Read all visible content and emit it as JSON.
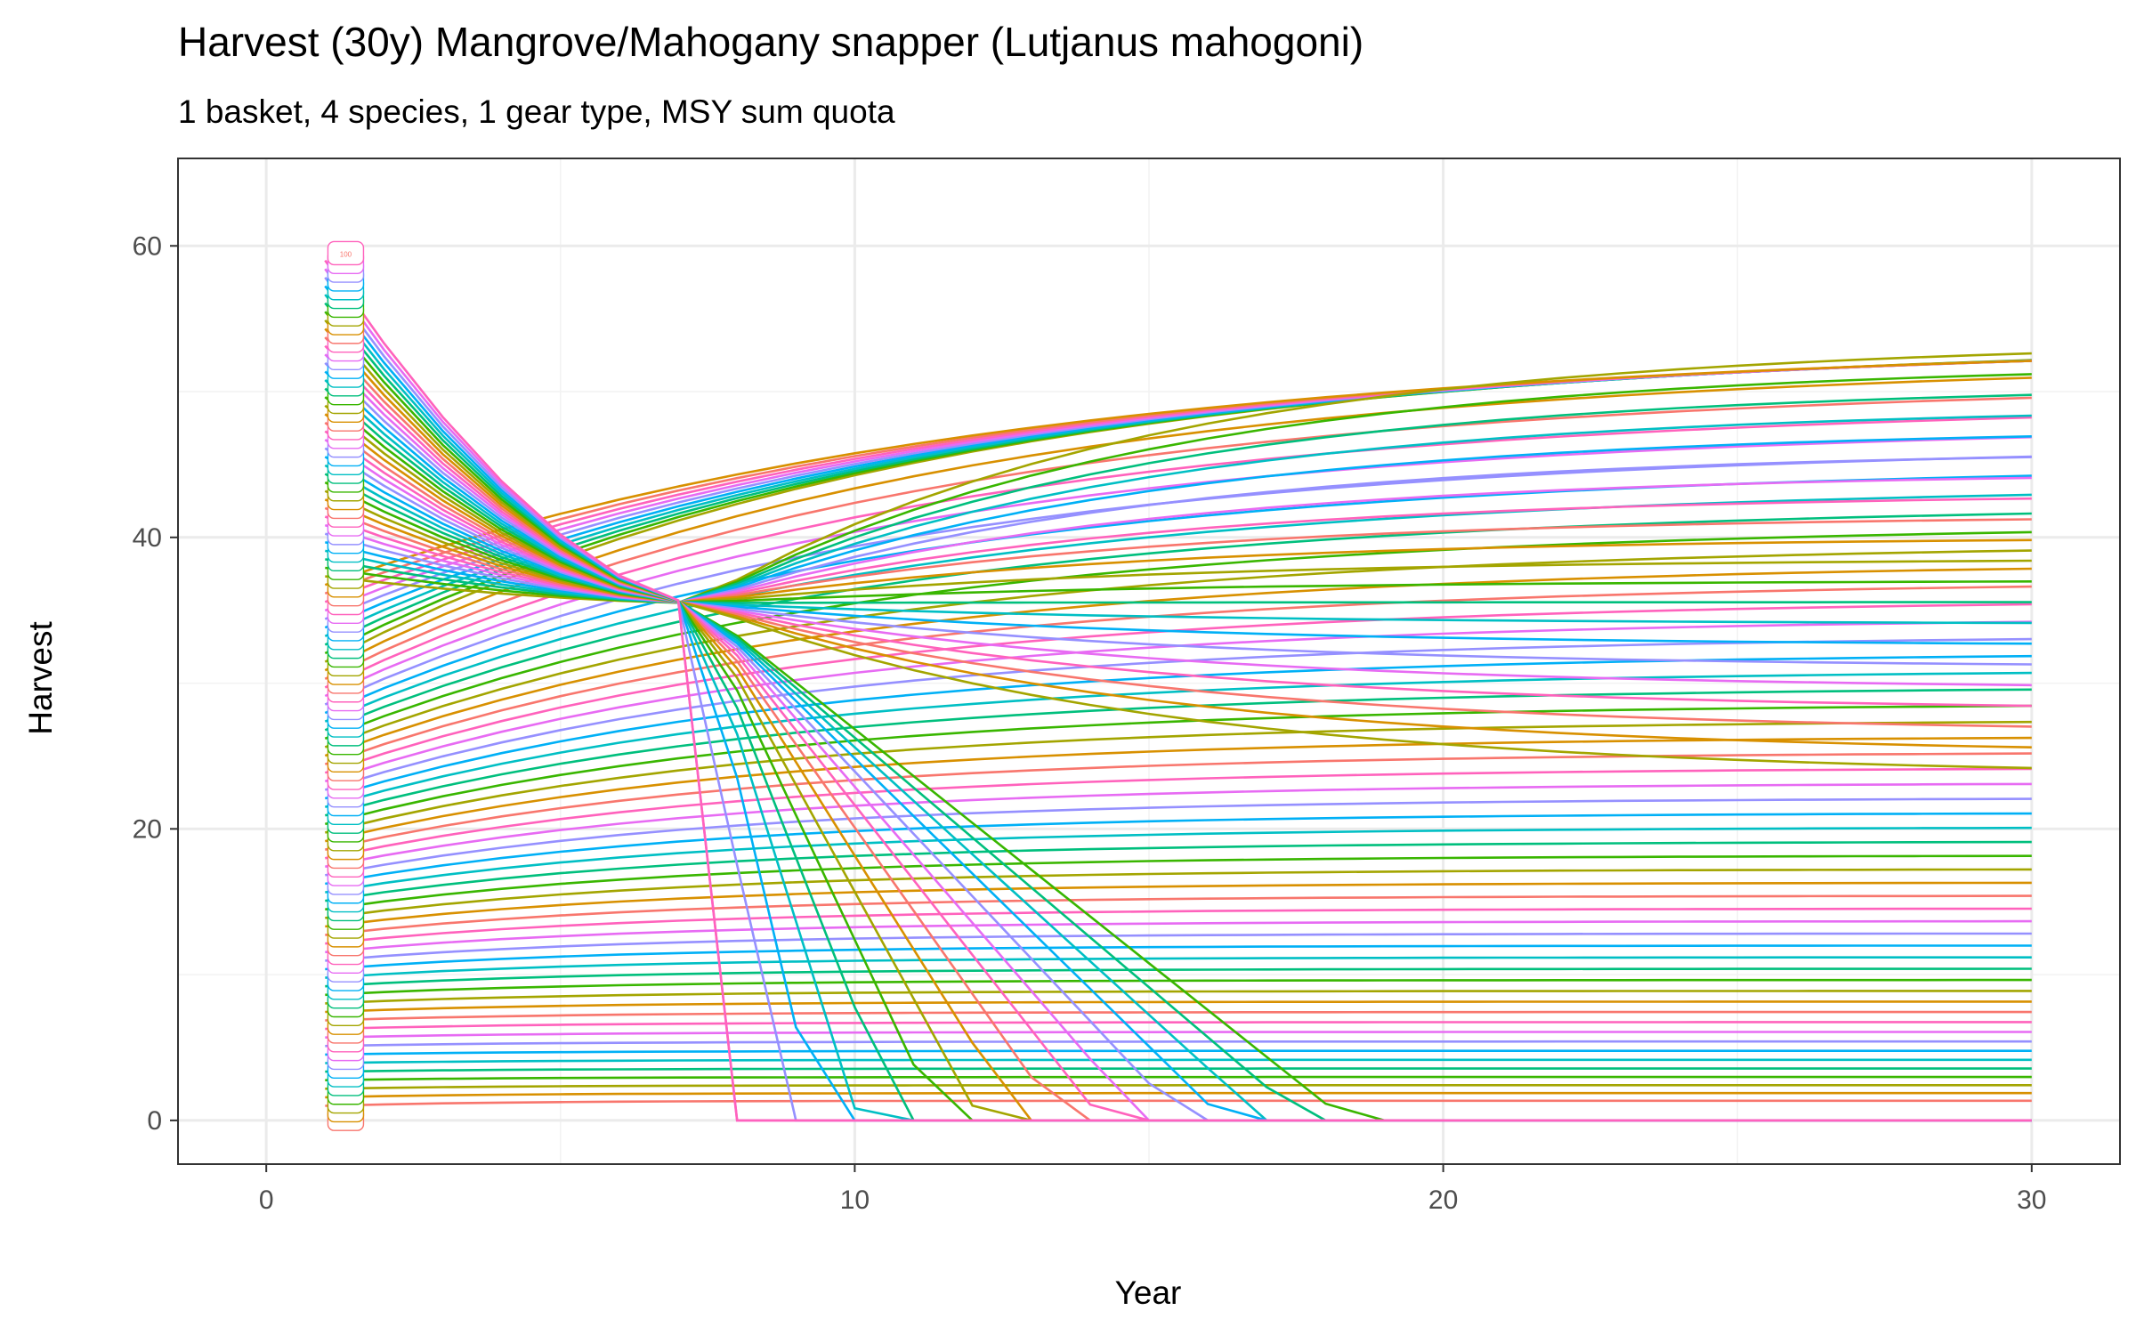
{
  "chart_data": {
    "type": "line",
    "title": "Harvest (30y) Mangrove/Mahogany snapper (Lutjanus mahogoni)",
    "subtitle": "1 basket, 4 species, 1 gear type, MSY sum quota",
    "xlabel": "Year",
    "ylabel": "Harvest",
    "xlim": [
      -1.5,
      31.5
    ],
    "ylim": [
      -3,
      66
    ],
    "x_ticks": [
      0,
      10,
      20,
      30
    ],
    "x_minor": [
      5,
      15,
      25
    ],
    "y_ticks": [
      0,
      20,
      40,
      60
    ],
    "y_minor": [
      10,
      30,
      50
    ],
    "grid": true,
    "legend": "none",
    "series_count": 100,
    "x": [
      1,
      2,
      3,
      4,
      5,
      6,
      7,
      8,
      9,
      10,
      11,
      12,
      13,
      14,
      15,
      16,
      17,
      18,
      19,
      20,
      21,
      22,
      23,
      24,
      25,
      26,
      27,
      28,
      29,
      30
    ],
    "label_x": 1.35,
    "label_step": 0.6,
    "top_label": "100",
    "palette": [
      "#F8766D",
      "#D89000",
      "#A3A500",
      "#39B600",
      "#00BF7D",
      "#00BFC4",
      "#00B0F6",
      "#9590FF",
      "#E76BF3",
      "#FF62BC"
    ],
    "model": {
      "note_series_k": "harvest of run k (k=1..100) = a_k + (b_k - a_k) * exp(-(x-1)/tau_k) with equilibrium a_k and start b_k",
      "start_min": 1.0,
      "start_max": 59.0,
      "decline_runs_end_value": 0,
      "equilibrium_max": 53.5,
      "crossover_year": 7.3,
      "crossover_value": 35.5
    }
  }
}
